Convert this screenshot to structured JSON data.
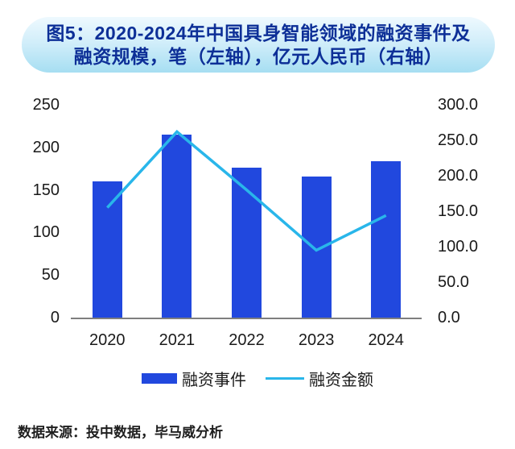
{
  "title": {
    "line1": "图5：2020-2024年中国具身智能领域的融资事件及",
    "line2": "融资规模，笔（左轴），亿元人民币（右轴）"
  },
  "source_note": "数据来源：投中数据，毕马威分析",
  "colors": {
    "bar": "#2148de",
    "line": "#29b6ea",
    "title_text": "#0d2f97",
    "banner_top": "#eef9fe",
    "banner_bottom": "#a6def2",
    "axis_line": "#7f7f7f",
    "label_text": "#1a1a1a"
  },
  "chart_data": {
    "type": "bar",
    "subtype": "bar-line-combo",
    "title": "图5：2020-2024年中国具身智能领域的融资事件及融资规模，笔（左轴），亿元人民币（右轴）",
    "categories": [
      "2020",
      "2021",
      "2022",
      "2023",
      "2024"
    ],
    "series": [
      {
        "name": "融资事件",
        "type": "bar",
        "axis": "left",
        "values": [
          160,
          215,
          176,
          166,
          184
        ]
      },
      {
        "name": "融资金额",
        "type": "line",
        "axis": "right",
        "values": [
          155,
          262,
          180,
          95,
          144
        ]
      }
    ],
    "left_axis": {
      "min": 0,
      "max": 250,
      "step": 50,
      "labels": [
        "0",
        "50",
        "100",
        "150",
        "200",
        "250"
      ]
    },
    "right_axis": {
      "min": 0,
      "max": 300,
      "step": 50,
      "labels": [
        "0.0",
        "50.0",
        "100.0",
        "150.0",
        "200.0",
        "250.0",
        "300.0"
      ]
    },
    "legend": [
      "融资事件",
      "融资金额"
    ],
    "legend_position": "bottom",
    "grid": false
  }
}
